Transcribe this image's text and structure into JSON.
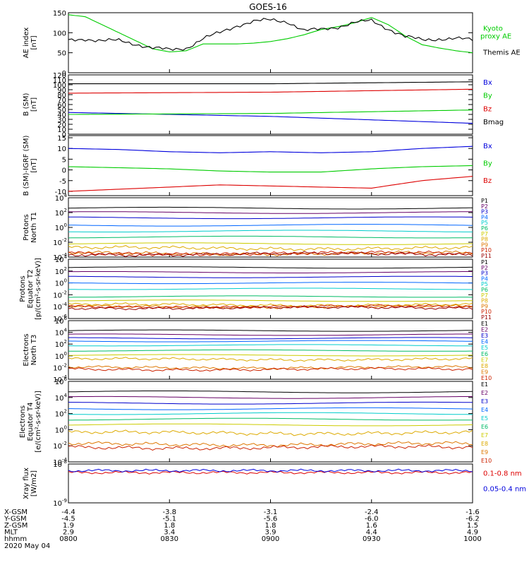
{
  "title": "GOES-16",
  "colors": {
    "black": "#000000",
    "blue": "#0000dd",
    "red": "#dd0000",
    "green": "#00cc00",
    "cyan": "#00cccc",
    "yellow": "#cccc00",
    "orange": "#dd8800",
    "p_colors": [
      "#000000",
      "#660066",
      "#0000cc",
      "#0066ff",
      "#00cccc",
      "#00bb66",
      "#cccc00",
      "#ddaa00",
      "#dd7700",
      "#cc2200",
      "#990000"
    ],
    "e_colors": [
      "#000000",
      "#660066",
      "#0000cc",
      "#0066ff",
      "#00cccc",
      "#00bb66",
      "#cccc00",
      "#ddaa00",
      "#dd7700",
      "#cc2200"
    ]
  },
  "chart_data": [
    {
      "type": "line",
      "ylabel": "AE index\n[nT]",
      "ylim": [
        0,
        150
      ],
      "yticks": [
        "0",
        "50",
        "100",
        "150"
      ],
      "legend_labels": [
        "Kyoto\nproxy AE",
        "Themis AE"
      ],
      "series": [
        {
          "name": "Kyoto proxy AE",
          "color": "green",
          "x": [
            0,
            5,
            10,
            15,
            20,
            25,
            30,
            35,
            40,
            45,
            50,
            55,
            60,
            65,
            70,
            75,
            80,
            85,
            90,
            95,
            100,
            105,
            110,
            115,
            120
          ],
          "y": [
            145,
            140,
            120,
            100,
            80,
            60,
            52,
            55,
            72,
            72,
            72,
            74,
            78,
            85,
            95,
            108,
            115,
            125,
            138,
            120,
            92,
            70,
            62,
            55,
            50
          ]
        },
        {
          "name": "Themis AE",
          "color": "black",
          "x": [
            0,
            5,
            10,
            15,
            20,
            25,
            30,
            35,
            40,
            45,
            50,
            55,
            60,
            65,
            70,
            75,
            80,
            85,
            90,
            95,
            100,
            105,
            110,
            115,
            120
          ],
          "y": [
            80,
            85,
            80,
            80,
            72,
            62,
            57,
            62,
            85,
            100,
            118,
            128,
            132,
            128,
            105,
            108,
            115,
            125,
            130,
            110,
            90,
            82,
            85,
            85,
            82
          ]
        }
      ]
    },
    {
      "type": "line",
      "ylabel": "B (SM)\n[nT]",
      "ylim": [
        0,
        120
      ],
      "yticks": [
        "0",
        "10",
        "20",
        "30",
        "40",
        "50",
        "60",
        "70",
        "80",
        "90",
        "100",
        "110",
        "120"
      ],
      "legend_labels": [
        "Bx",
        "By",
        "Bz",
        "Bmag"
      ],
      "series": [
        {
          "name": "Bx",
          "color": "blue",
          "x": [
            0,
            60,
            120
          ],
          "y": [
            44,
            36,
            22
          ]
        },
        {
          "name": "By",
          "color": "green",
          "x": [
            0,
            60,
            120
          ],
          "y": [
            40,
            42,
            49
          ]
        },
        {
          "name": "Bz",
          "color": "red",
          "x": [
            0,
            60,
            120
          ],
          "y": [
            83,
            85,
            91
          ]
        },
        {
          "name": "Bmag",
          "color": "black",
          "x": [
            0,
            60,
            120
          ],
          "y": [
            102,
            102,
            106
          ]
        }
      ]
    },
    {
      "type": "line",
      "ylabel": "B (SM)-IGRF (SM)\n[nT]",
      "ylim": [
        -12,
        16
      ],
      "yticks": [
        "-10",
        "-5",
        "0",
        "5",
        "10",
        "15"
      ],
      "legend_labels": [
        "Bx",
        "By",
        "Bz"
      ],
      "series": [
        {
          "name": "Bx",
          "color": "blue",
          "x": [
            0,
            15,
            30,
            45,
            60,
            75,
            90,
            105,
            120
          ],
          "y": [
            10,
            9.5,
            8.5,
            8,
            8.5,
            8,
            8.5,
            10,
            11
          ]
        },
        {
          "name": "By",
          "color": "green",
          "x": [
            0,
            15,
            30,
            45,
            60,
            75,
            90,
            105,
            120
          ],
          "y": [
            1.5,
            1,
            0.5,
            -0.5,
            -1,
            -1,
            0.5,
            1.5,
            2
          ]
        },
        {
          "name": "Bz",
          "color": "red",
          "x": [
            0,
            15,
            30,
            45,
            60,
            75,
            90,
            105,
            120
          ],
          "y": [
            -10,
            -9,
            -8,
            -7,
            -7.5,
            -8,
            -8.5,
            -5,
            -3
          ]
        }
      ]
    },
    {
      "type": "line",
      "log": true,
      "ylabel": "Protons\nNorth T1",
      "ylim": [
        -4,
        4
      ],
      "yticks": [
        "10^-4",
        "10^-2",
        "10^0",
        "10^2",
        "10^4"
      ],
      "legend_labels": [
        "P1",
        "P2",
        "P3",
        "P4",
        "P5",
        "P6",
        "P7",
        "P8",
        "P9",
        "P10",
        "P11"
      ],
      "levels": [
        2.6,
        2.0,
        1.3,
        0.3,
        -0.5,
        -1.3,
        -2.2,
        -2.8,
        -3.5,
        -3.5,
        -3.6
      ]
    },
    {
      "type": "line",
      "log": true,
      "ylabel": "Protons\nEquator T2\n[p/(cm²-s-sr-keV)]",
      "ylim": [
        -6,
        4
      ],
      "yticks": [
        "10^-6",
        "10^-4",
        "10^-2",
        "10^0",
        "10^2",
        "10^4"
      ],
      "legend_labels": [
        "P1",
        "P2",
        "P3",
        "P4",
        "P5",
        "P6",
        "P7",
        "P8",
        "P9",
        "P10",
        "P11"
      ],
      "levels": [
        2.6,
        1.8,
        1.0,
        0.0,
        -1.0,
        -2.3,
        -3.0,
        -3.7,
        -4.0,
        -4.0,
        -4.2
      ]
    },
    {
      "type": "line",
      "log": true,
      "ylabel": "Electrons\nNorth T3",
      "ylim": [
        -4,
        6
      ],
      "yticks": [
        "10^-4",
        "10^-2",
        "10^0",
        "10^2",
        "10^4",
        "10^6"
      ],
      "legend_labels": [
        "E1",
        "E2",
        "E3",
        "E4",
        "E5",
        "E6",
        "E7",
        "E8",
        "E9",
        "E10"
      ],
      "levels": [
        4.3,
        3.6,
        3.0,
        2.5,
        1.8,
        0.9,
        0.1,
        -0.6,
        -2.0,
        -2.3
      ]
    },
    {
      "type": "line",
      "log": true,
      "ylabel": "Electrons\nEquator T4\n[e/(cm²-s-sr-keV)]",
      "ylim": [
        -4,
        6
      ],
      "yticks": [
        "10^-4",
        "10^-2",
        "10^0",
        "10^2",
        "10^4",
        "10^6"
      ],
      "legend_labels": [
        "E1",
        "E2",
        "E3",
        "E4",
        "E5",
        "E6",
        "E7",
        "E8",
        "E9",
        "E10"
      ],
      "levels": [
        4.7,
        4.0,
        3.3,
        2.6,
        2.0,
        1.3,
        0.6,
        -0.4,
        -1.8,
        -2.2
      ]
    },
    {
      "type": "line",
      "log": true,
      "ylabel": "Xray flux\n[W/m2]",
      "ylim": [
        -9,
        -8
      ],
      "yticks": [
        "10^-9",
        "10^-8"
      ],
      "legend_labels": [
        "0.1-0.8 nm",
        "0.05-0.4 nm"
      ],
      "series": [
        {
          "name": "0.1-0.8 nm",
          "color": "red",
          "level": -8.22
        },
        {
          "name": "0.05-0.4 nm",
          "color": "blue",
          "level": -8.17
        }
      ]
    }
  ],
  "x_axis": {
    "row_labels": [
      "X-GSM",
      "Y-GSM",
      "Z-GSM",
      "MLT",
      "hhmm"
    ],
    "date": "2020 May 04",
    "columns": [
      {
        "t": 0,
        "values": [
          "-4.4",
          "-4.5",
          "1.9",
          "2.9",
          "0800"
        ]
      },
      {
        "t": 30,
        "values": [
          "-3.8",
          "-5.1",
          "1.8",
          "3.4",
          "0830"
        ]
      },
      {
        "t": 60,
        "values": [
          "-3.1",
          "-5.6",
          "1.8",
          "3.9",
          "0900"
        ]
      },
      {
        "t": 90,
        "values": [
          "-2.4",
          "-6.0",
          "1.6",
          "4.4",
          "0930"
        ]
      },
      {
        "t": 120,
        "values": [
          "-1.6",
          "-6.2",
          "1.5",
          "4.9",
          "1000"
        ]
      }
    ]
  }
}
